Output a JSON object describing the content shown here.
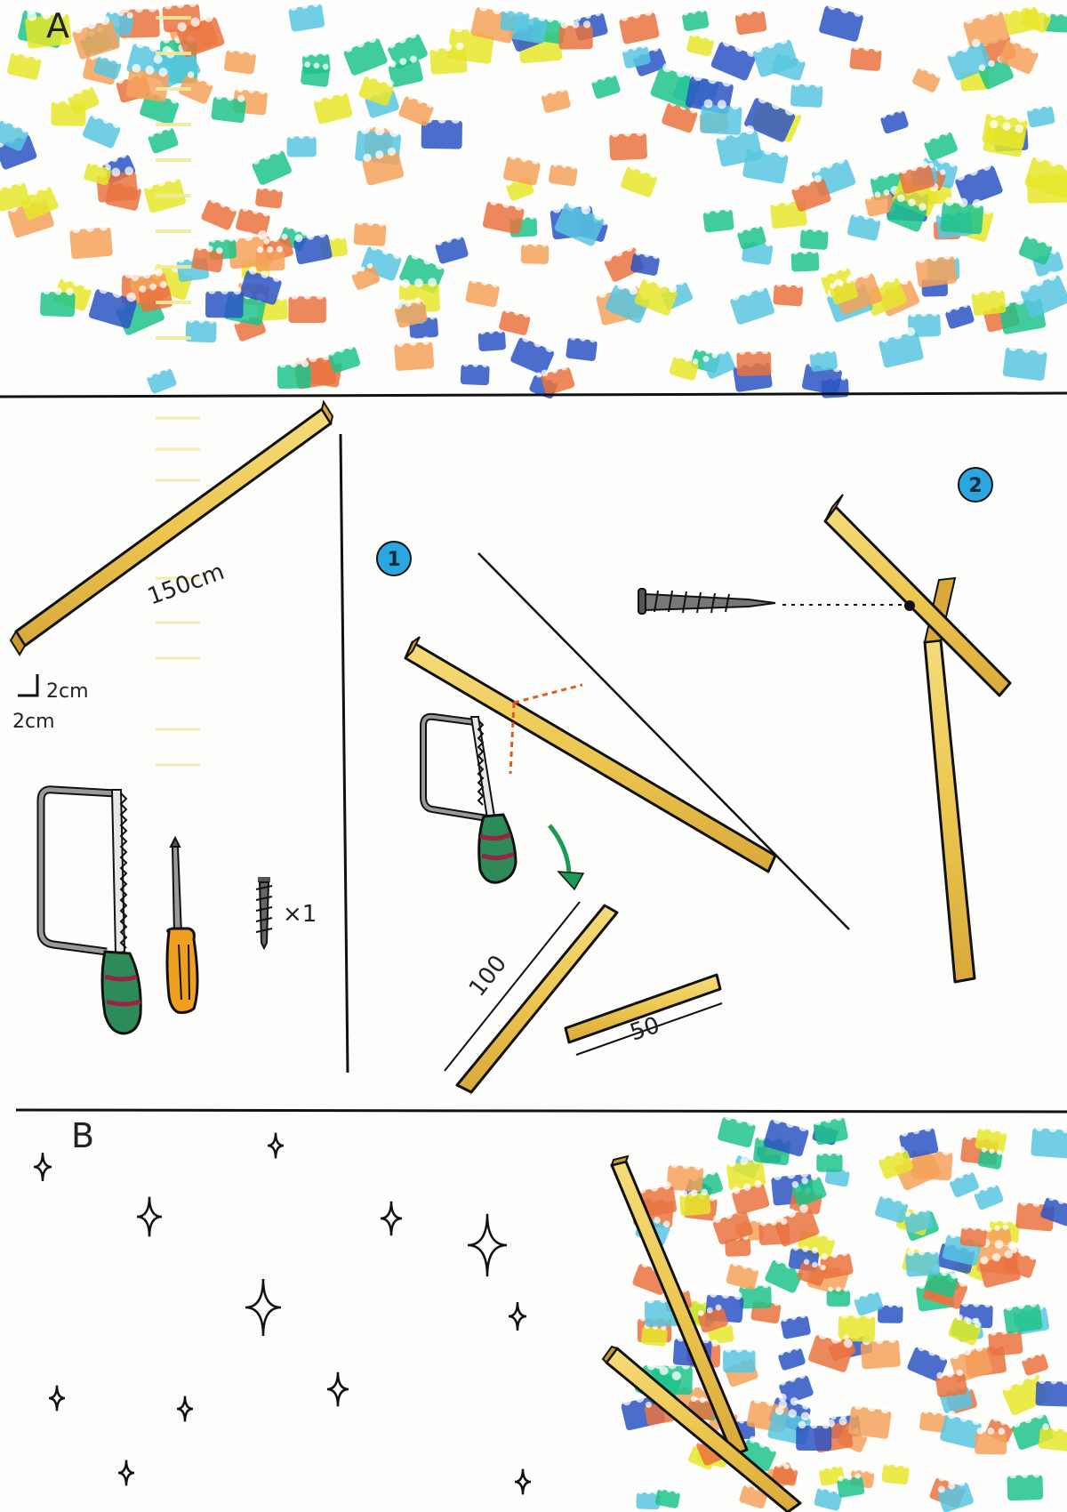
{
  "panels": {
    "a": {
      "letter": "A"
    },
    "b": {
      "letter": "B"
    }
  },
  "materials": {
    "plank_length": "150cm",
    "cross_section_w": "2cm",
    "cross_section_h": "2cm",
    "screw_count": "×1"
  },
  "steps": {
    "one": {
      "number": "1",
      "cut_long": "100",
      "cut_short": "50"
    },
    "two": {
      "number": "2"
    }
  },
  "colors": {
    "stamp_palette": [
      "#e9733f",
      "#1fc389",
      "#2b55c4",
      "#e6e62a",
      "#58c6e0",
      "#f4a25a"
    ],
    "wood": "#ecc64f",
    "wood_edge": "#c99a2a",
    "step_badge": "#2aa6e0",
    "cut_mark": "#e05a1c",
    "arrow": "#1a9a52",
    "saw_handle": "#2f8a5a",
    "screwdriver_handle": "#f0a020",
    "ink": "#111111"
  },
  "icons": [
    "hacksaw-icon",
    "screwdriver-icon",
    "screw-icon",
    "sparkle-icon",
    "curved-arrow-icon"
  ]
}
